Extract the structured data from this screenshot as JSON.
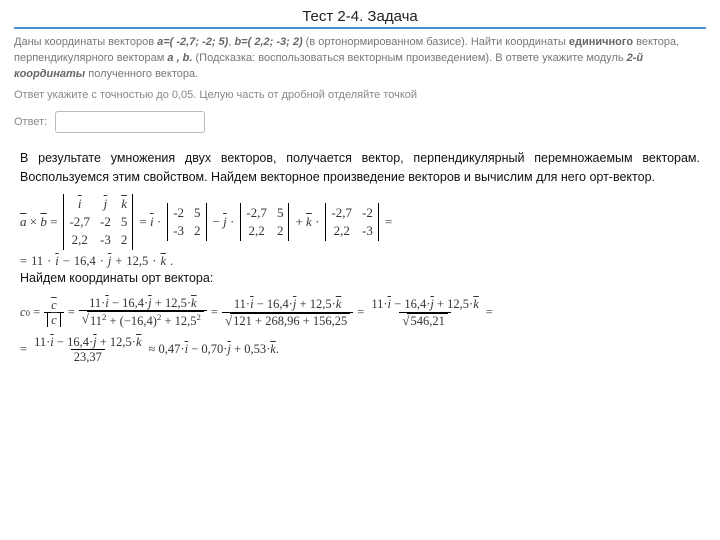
{
  "title": "Тест 2-4. Задача",
  "problem_html": "Даны координаты векторов <b><i>a=( -2,7; -2; 5)</i></b>, <b><i>b=( 2,2; -3; 2)</i></b> (в ортонормированном базисе). Найти координаты <b>единичного</b> вектора, перпендикулярного векторам <b><i>a , b.</i></b> (Подсказка: воспользоваться векторным произведением). В ответе укажите модуль <b><i>2-й координаты</i></b> полученного вектора.",
  "subnote": "Ответ укажите с точностью до 0,05. Целую часть от дробной отделяйте точкой",
  "answer_label": "Ответ:",
  "answer_value": "",
  "solution_p1": "В результате умножения двух векторов, получается вектор, перпендикулярный перемножаемым векторам. Воспользуемся этим свойством. Найдем векторное произведение векторов и вычислим для него орт-вектор.",
  "solution_p2": "Найдем координаты орт вектора:",
  "vec": {
    "a": [
      "-2,7",
      "-2",
      "5"
    ],
    "b": [
      "2,2",
      "-3",
      "2"
    ],
    "ij": [
      "i",
      "j",
      "k"
    ]
  },
  "minors": {
    "m1": [
      [
        "-2",
        "5"
      ],
      [
        "-3",
        "2"
      ]
    ],
    "m2": [
      [
        "-2,7",
        "5"
      ],
      [
        "2,2",
        "2"
      ]
    ],
    "m3": [
      [
        "-2,7",
        "-2"
      ],
      [
        "2,2",
        "-3"
      ]
    ]
  },
  "cross_result": {
    "i": "11",
    "j": "16,4",
    "k": "12,5"
  },
  "norm_calc": {
    "sq": "11² + (−16,4)² + 12,5²",
    "sum": "121 + 268,96 + 156,25",
    "val": "546,21",
    "sqrt": "23,37"
  },
  "unit": {
    "i": "0,47",
    "j": "0,70",
    "k": "0,53"
  },
  "colors": {
    "rule": "#4a90d9",
    "muted": "#777",
    "text": "#111"
  }
}
